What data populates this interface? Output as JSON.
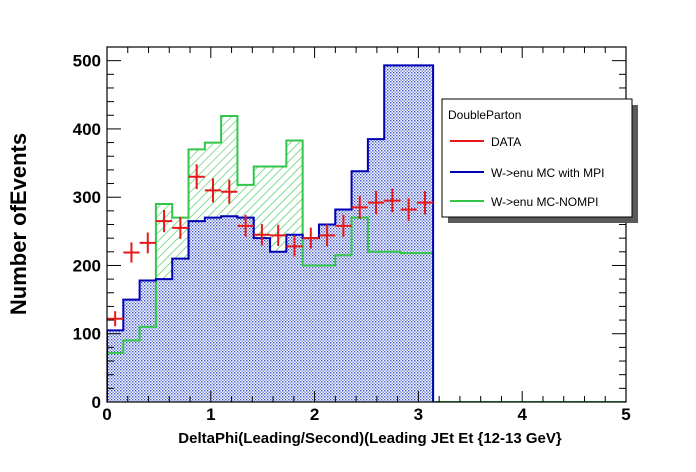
{
  "chart_data": {
    "type": "bar",
    "title": "",
    "xlabel": "DeltaPhi(Leading/Second)(Leading JEt Et {12-13 GeV}",
    "ylabel": "Number ofEvents",
    "xlim": [
      0,
      5
    ],
    "ylim": [
      0,
      520
    ],
    "x_ticks": [
      "0",
      "1",
      "2",
      "3",
      "4",
      "5"
    ],
    "y_ticks": [
      "0",
      "100",
      "200",
      "300",
      "400",
      "500"
    ],
    "bin_edges": [
      0,
      0.1571,
      0.3142,
      0.4712,
      0.6283,
      0.7854,
      0.9425,
      1.0996,
      1.2566,
      1.4137,
      1.5708,
      1.7279,
      1.885,
      2.042,
      2.1991,
      2.3562,
      2.5133,
      2.6704,
      2.8274,
      2.9845,
      3.1416
    ],
    "legend": {
      "title": "DoubleParton",
      "position": "top-right",
      "entries": [
        "DATA",
        "W->enu MC with MPI",
        "W->enu MC-NOMPI"
      ]
    },
    "series": [
      {
        "name": "DATA",
        "kind": "points",
        "color": "#e8171a",
        "x": [
          0.0785,
          0.2356,
          0.3927,
          0.5498,
          0.7069,
          0.8639,
          1.021,
          1.1781,
          1.3352,
          1.4923,
          1.6493,
          1.8064,
          1.9635,
          2.1206,
          2.2777,
          2.4347,
          2.5918,
          2.7489,
          2.906,
          3.0631
        ],
        "values": [
          122,
          219,
          233,
          265,
          255,
          330,
          310,
          308,
          258,
          245,
          244,
          228,
          240,
          244,
          258,
          285,
          292,
          295,
          282,
          292
        ]
      },
      {
        "name": "W->enu MC with MPI",
        "kind": "histogram",
        "color": "#0000b4",
        "values": [
          105,
          150,
          178,
          180,
          210,
          265,
          270,
          272,
          270,
          240,
          220,
          245,
          240,
          260,
          282,
          338,
          385,
          493,
          493,
          493
        ]
      },
      {
        "name": "W->enu MC-NOMPI",
        "kind": "histogram",
        "color": "#33c64a",
        "values": [
          72,
          90,
          110,
          290,
          270,
          370,
          380,
          419,
          318,
          345,
          345,
          383,
          200,
          200,
          215,
          270,
          220,
          220,
          218,
          218
        ]
      }
    ]
  }
}
